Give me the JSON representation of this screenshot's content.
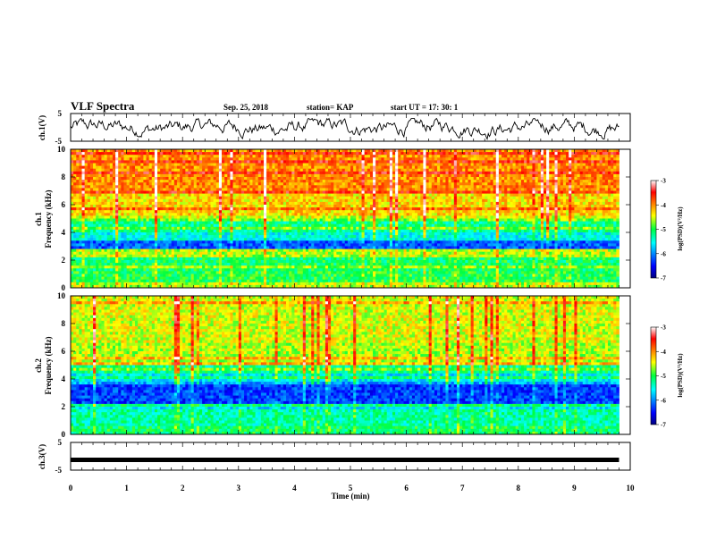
{
  "header": {
    "title": "VLF Spectra",
    "date": "Sep. 25, 2018",
    "station": "station= KAP",
    "start": "start  UT  =   17: 30: 1"
  },
  "chart_data": [
    {
      "type": "line",
      "panel": "ch1-waveform",
      "ylabel": "ch.1(V)",
      "ylim": [
        -5,
        5
      ],
      "yticks": [
        "5",
        "-5"
      ],
      "x_range": [
        0,
        9.8
      ],
      "color": "#000000",
      "note_series": "noisy waveform fluctuating roughly between -4 and 3 V"
    },
    {
      "type": "heatmap",
      "panel": "ch1-spectrogram",
      "ylabel_top": "ch.1",
      "ylabel": "Frequency  (kHz)",
      "ylim": [
        0,
        10
      ],
      "yticks": [
        "0",
        "2",
        "4",
        "6",
        "8",
        "10"
      ],
      "x_range": [
        0,
        9.8
      ],
      "bands": [
        {
          "f0": 0,
          "f1": 0.5,
          "level": -4.6
        },
        {
          "f0": 0.5,
          "f1": 1.2,
          "level": -5.0
        },
        {
          "f0": 1.2,
          "f1": 2.3,
          "level": -5.1
        },
        {
          "f0": 2.3,
          "f1": 2.7,
          "level": -4.6
        },
        {
          "f0": 2.7,
          "f1": 3.4,
          "level": -6.2
        },
        {
          "f0": 3.4,
          "f1": 3.9,
          "level": -5.5
        },
        {
          "f0": 3.9,
          "f1": 4.9,
          "level": -5.2
        },
        {
          "f0": 4.9,
          "f1": 5.3,
          "level": -4.5
        },
        {
          "f0": 5.3,
          "f1": 6.8,
          "level": -4.3
        },
        {
          "f0": 6.8,
          "f1": 10,
          "level": -4.0
        }
      ],
      "colorbar": {
        "label": "log(PSD)(V²/Hz)",
        "range": [
          -7,
          -3
        ],
        "ticks": [
          "-3",
          "-4",
          "-5",
          "-6",
          "-7"
        ]
      }
    },
    {
      "type": "heatmap",
      "panel": "ch2-spectrogram",
      "ylabel_top": "ch.2",
      "ylabel": "Frequency  (kHz)",
      "ylim": [
        0,
        10
      ],
      "yticks": [
        "0",
        "2",
        "4",
        "6",
        "8",
        "10"
      ],
      "x_range": [
        0,
        9.8
      ],
      "bands": [
        {
          "f0": 0,
          "f1": 0.6,
          "level": -5.1
        },
        {
          "f0": 0.6,
          "f1": 1.8,
          "level": -5.3
        },
        {
          "f0": 1.8,
          "f1": 2.2,
          "level": -5.6
        },
        {
          "f0": 2.2,
          "f1": 3.8,
          "level": -6.3
        },
        {
          "f0": 3.8,
          "f1": 4.4,
          "level": -5.6
        },
        {
          "f0": 4.4,
          "f1": 5.0,
          "level": -5.2
        },
        {
          "f0": 5.0,
          "f1": 6.6,
          "level": -4.6
        },
        {
          "f0": 6.6,
          "f1": 10,
          "level": -4.5
        }
      ],
      "colorbar": {
        "label": "log(PSD)(V²/Hz)",
        "range": [
          -7,
          -3
        ],
        "ticks": [
          "-3",
          "-4",
          "-5",
          "-6",
          "-7"
        ]
      }
    },
    {
      "type": "line",
      "panel": "ch3-waveform",
      "ylabel": "ch.3(V)",
      "ylim": [
        -5,
        5
      ],
      "yticks": [
        "5",
        "-5"
      ],
      "x": [
        0,
        9.8
      ],
      "y": [
        -1.3,
        -1.3
      ],
      "color": "#000000",
      "xlabel": "Time  (min)",
      "xlim": [
        0,
        10
      ],
      "xticks": [
        "0",
        "1",
        "2",
        "3",
        "4",
        "5",
        "6",
        "7",
        "8",
        "9",
        "10"
      ]
    }
  ]
}
